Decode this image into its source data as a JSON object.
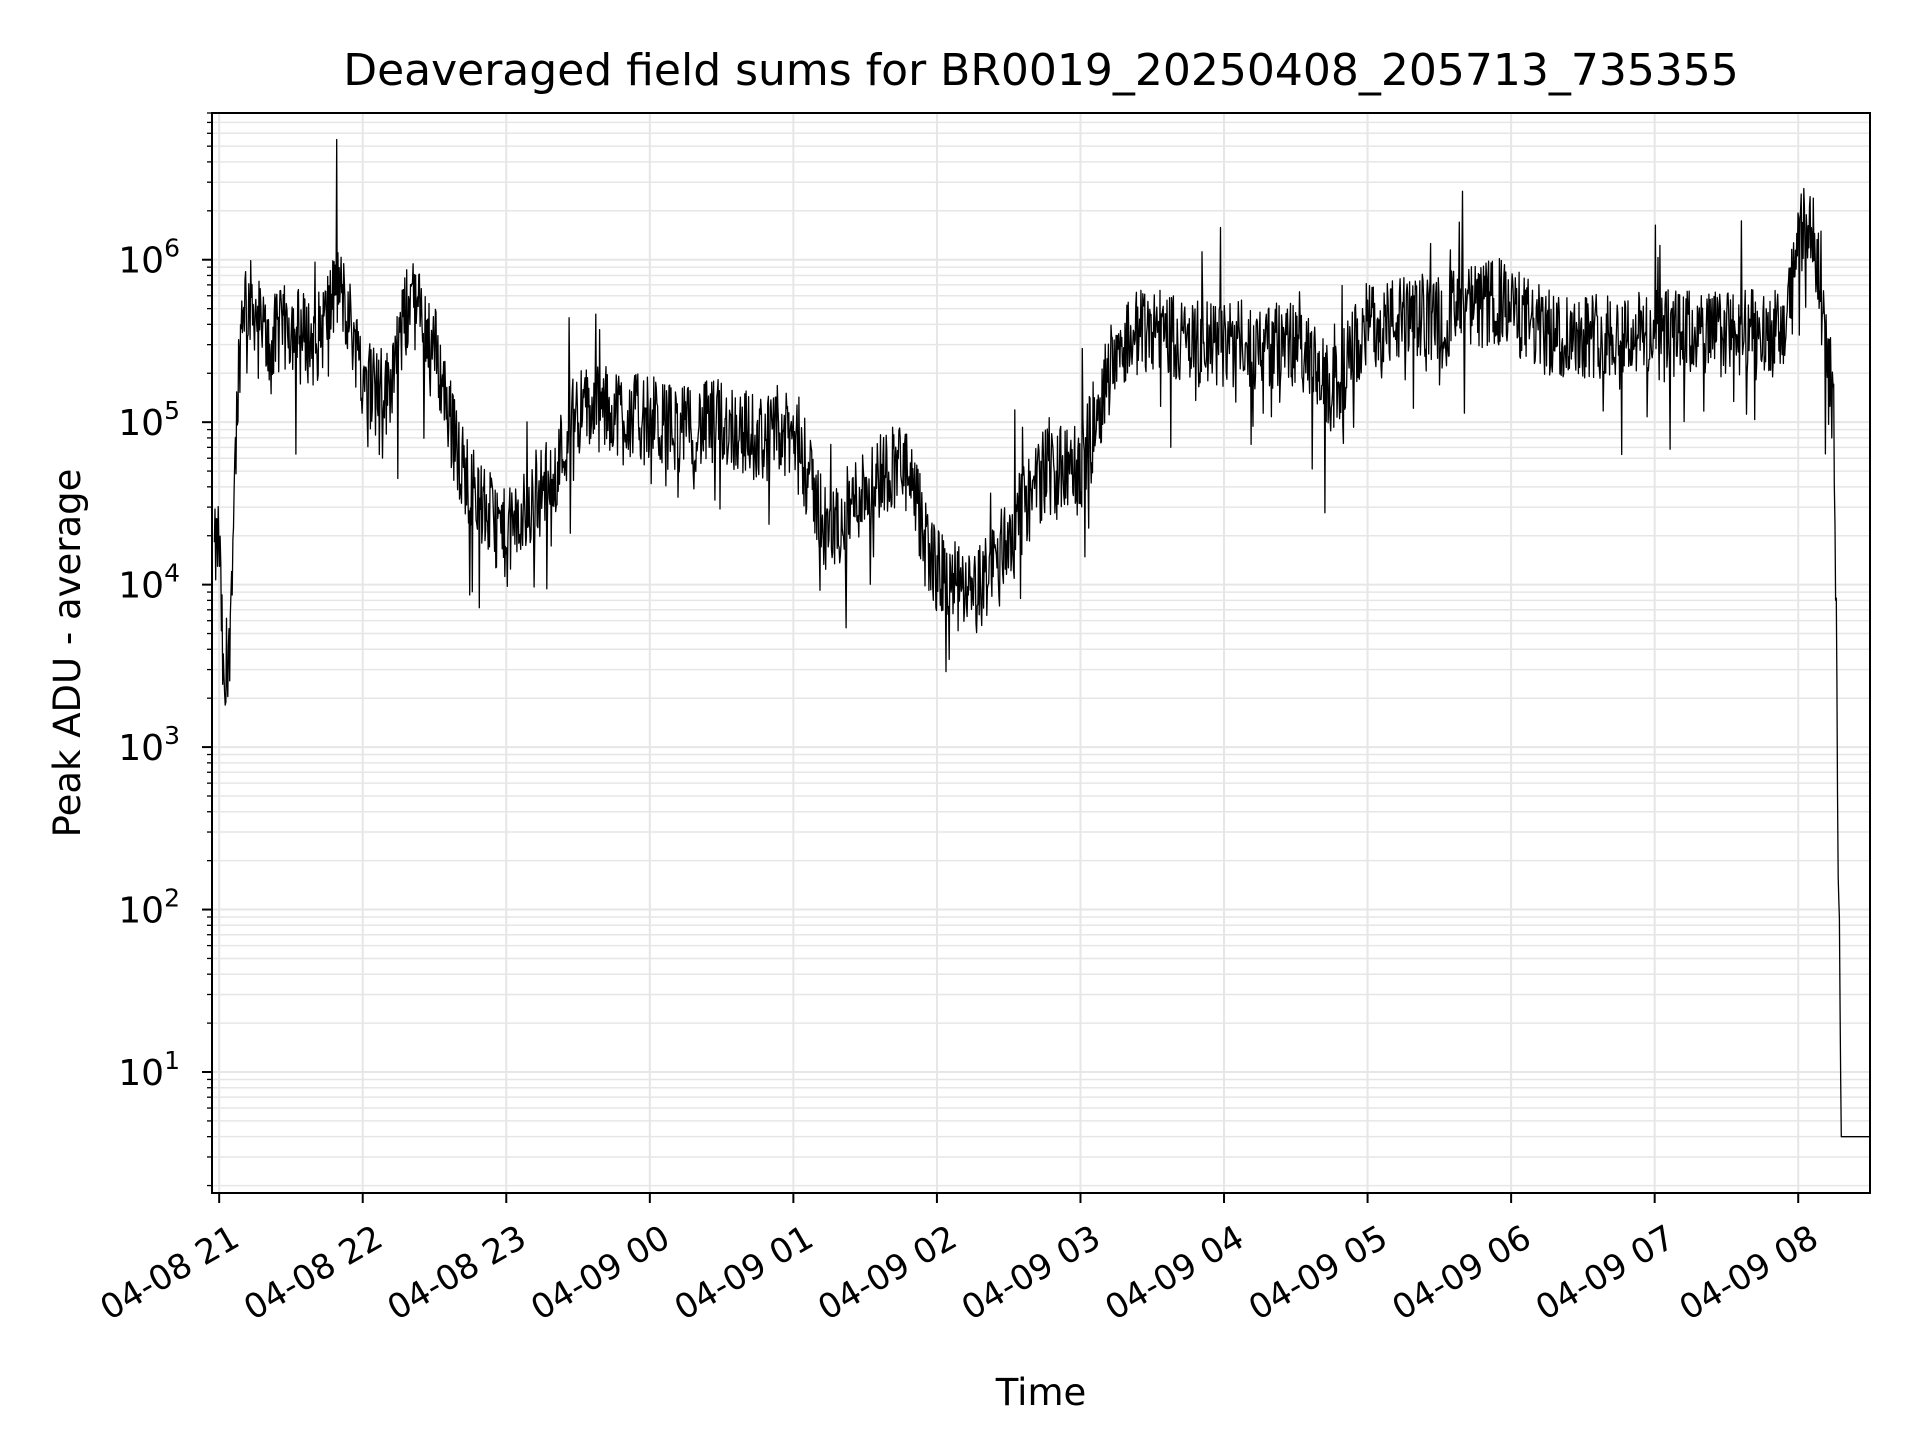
{
  "chart_data": {
    "type": "line",
    "title": "Deaveraged field sums for BR0019_20250408_205713_735355",
    "xlabel": "Time",
    "ylabel": "Peak ADU - average",
    "yscale": "log",
    "grid": true,
    "series_color": "#000000",
    "grid_color": "#e6e6e6",
    "x_range": [
      "2025-04-08 20:57",
      "2025-04-09 08:30"
    ],
    "y_range": [
      1.8,
      8000000
    ],
    "x_ticks": [
      {
        "t": "2025-04-08 21:00",
        "label": "04-08 21"
      },
      {
        "t": "2025-04-08 22:00",
        "label": "04-08 22"
      },
      {
        "t": "2025-04-08 23:00",
        "label": "04-08 23"
      },
      {
        "t": "2025-04-09 00:00",
        "label": "04-09 00"
      },
      {
        "t": "2025-04-09 01:00",
        "label": "04-09 01"
      },
      {
        "t": "2025-04-09 02:00",
        "label": "04-09 02"
      },
      {
        "t": "2025-04-09 03:00",
        "label": "04-09 03"
      },
      {
        "t": "2025-04-09 04:00",
        "label": "04-09 04"
      },
      {
        "t": "2025-04-09 05:00",
        "label": "04-09 05"
      },
      {
        "t": "2025-04-09 06:00",
        "label": "04-09 06"
      },
      {
        "t": "2025-04-09 07:00",
        "label": "04-09 07"
      },
      {
        "t": "2025-04-09 08:00",
        "label": "04-09 08"
      }
    ],
    "y_ticks": [
      {
        "value": 10,
        "base": "10",
        "exp": "1"
      },
      {
        "value": 100,
        "base": "10",
        "exp": "2"
      },
      {
        "value": 1000,
        "base": "10",
        "exp": "3"
      },
      {
        "value": 10000,
        "base": "10",
        "exp": "4"
      },
      {
        "value": 100000,
        "base": "10",
        "exp": "5"
      },
      {
        "value": 1000000,
        "base": "10",
        "exp": "6"
      }
    ],
    "series": [
      {
        "x": [
          "2025-04-08 20:58",
          "2025-04-08 21:00",
          "2025-04-08 21:02",
          "2025-04-08 21:04",
          "2025-04-08 21:06",
          "2025-04-08 21:08",
          "2025-04-08 21:10",
          "2025-04-08 21:15",
          "2025-04-08 21:20",
          "2025-04-08 21:30",
          "2025-04-08 21:40",
          "2025-04-08 21:50",
          "2025-04-08 21:55",
          "2025-04-08 22:00",
          "2025-04-08 22:10",
          "2025-04-08 22:20",
          "2025-04-08 22:30",
          "2025-04-08 22:40",
          "2025-04-08 22:50",
          "2025-04-08 23:00",
          "2025-04-08 23:10",
          "2025-04-08 23:20",
          "2025-04-08 23:30",
          "2025-04-08 23:45",
          "2025-04-09 00:00",
          "2025-04-09 00:15",
          "2025-04-09 00:30",
          "2025-04-09 00:45",
          "2025-04-09 01:00",
          "2025-04-09 01:15",
          "2025-04-09 01:30",
          "2025-04-09 01:45",
          "2025-04-09 02:00",
          "2025-04-09 02:15",
          "2025-04-09 02:30",
          "2025-04-09 02:45",
          "2025-04-09 03:00",
          "2025-04-09 03:15",
          "2025-04-09 03:30",
          "2025-04-09 03:45",
          "2025-04-09 04:00",
          "2025-04-09 04:30",
          "2025-04-09 04:45",
          "2025-04-09 05:00",
          "2025-04-09 05:30",
          "2025-04-09 05:55",
          "2025-04-09 06:15",
          "2025-04-09 06:30",
          "2025-04-09 07:00",
          "2025-04-09 07:30",
          "2025-04-09 07:55",
          "2025-04-09 08:00",
          "2025-04-09 08:05",
          "2025-04-09 08:10",
          "2025-04-09 08:15",
          "2025-04-09 08:17",
          "2025-04-09 08:18",
          "2025-04-09 08:30"
        ],
        "y": [
          15000,
          20000,
          1800,
          3000,
          30000,
          200000,
          600000,
          500000,
          300000,
          400000,
          300000,
          700000,
          400000,
          200000,
          150000,
          600000,
          300000,
          60000,
          30000,
          20000,
          30000,
          50000,
          120000,
          120000,
          100000,
          90000,
          100000,
          80000,
          80000,
          20000,
          40000,
          60000,
          12000,
          8000,
          20000,
          50000,
          50000,
          300000,
          400000,
          300000,
          300000,
          300000,
          150000,
          400000,
          450000,
          550000,
          350000,
          350000,
          350000,
          350000,
          350000,
          1500000,
          1500000,
          800000,
          100000,
          100,
          4,
          4
        ]
      }
    ]
  }
}
